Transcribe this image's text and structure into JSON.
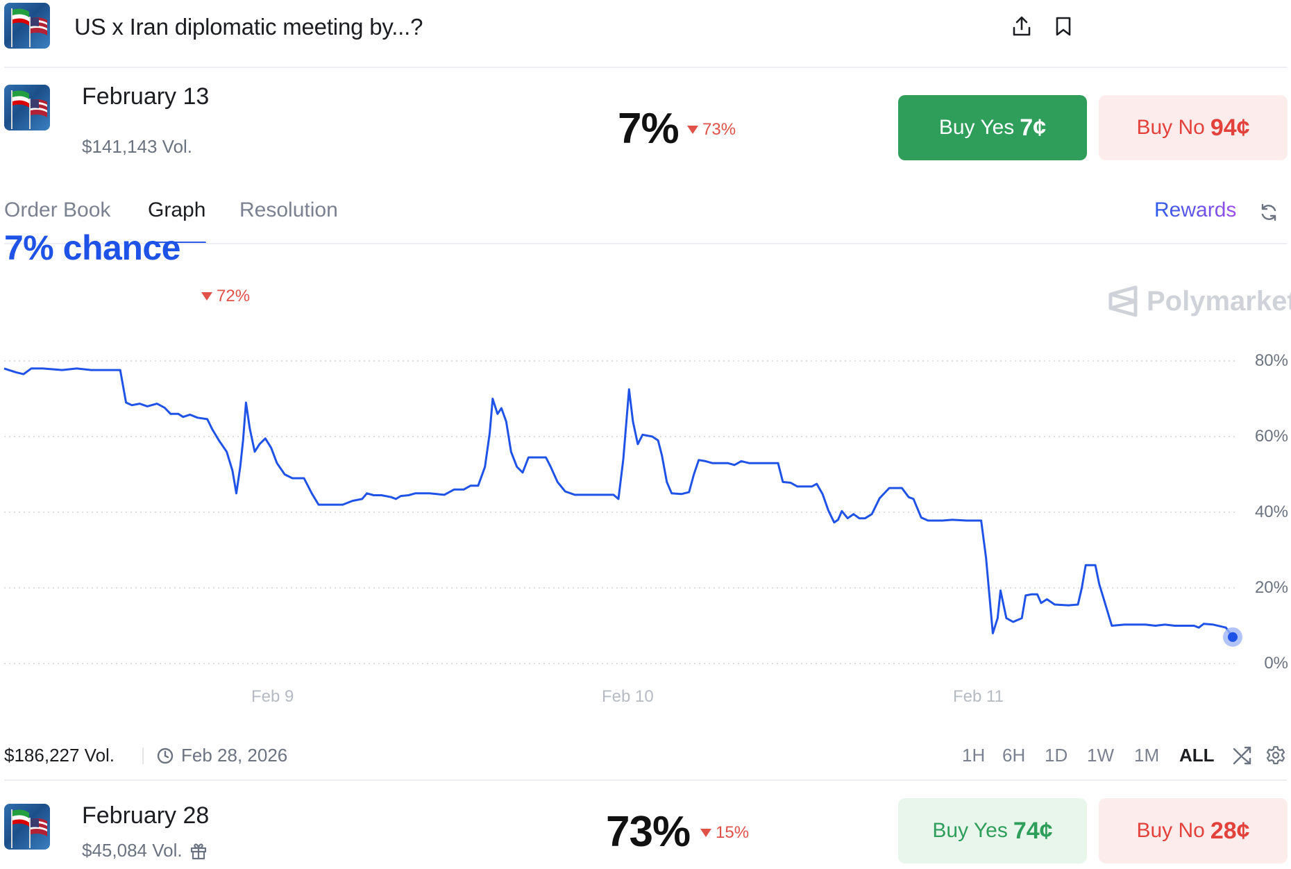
{
  "header": {
    "title": "US x Iran diplomatic meeting by...?",
    "share_icon": "share-icon",
    "bookmark_icon": "bookmark-icon"
  },
  "markets": [
    {
      "date": "February 13",
      "volume": "$141,143 Vol.",
      "percent": "7%",
      "change": "73%",
      "buy_yes_label": "Buy Yes",
      "buy_yes_price": "7¢",
      "buy_no_label": "Buy No",
      "buy_no_price": "94¢"
    },
    {
      "date": "February 28",
      "volume": "$45,084 Vol.",
      "percent": "73%",
      "change": "15%",
      "buy_yes_label": "Buy Yes",
      "buy_yes_price": "74¢",
      "buy_no_label": "Buy No",
      "buy_no_price": "28¢",
      "gift_icon": "gift-icon"
    }
  ],
  "tabs": [
    {
      "label": "Order Book",
      "active": false
    },
    {
      "label": "Graph",
      "active": true
    },
    {
      "label": "Resolution",
      "active": false
    }
  ],
  "rewards_label": "Rewards",
  "chance": {
    "label": "7% chance",
    "change": "72%"
  },
  "watermark": "Polymarket",
  "footer": {
    "volume": "$186,227 Vol.",
    "end_date": "Feb 28, 2026",
    "ranges": [
      "1H",
      "6H",
      "1D",
      "1W",
      "1M",
      "ALL"
    ],
    "active_range": "ALL"
  },
  "colors": {
    "line": "#1f52e6",
    "accent": "#2b5bea",
    "yes": "#2f9e5b",
    "no": "#e3413b",
    "down": "#e05148"
  },
  "chart_data": {
    "type": "line",
    "x_ticks": [
      "Feb 9",
      "Feb 10",
      "Feb 11"
    ],
    "y_ticks": [
      "80%",
      "60%",
      "40%",
      "20%",
      "0%"
    ],
    "ylim": [
      0,
      80
    ],
    "grid": true,
    "series": [
      {
        "points": [
          [
            0,
            78
          ],
          [
            0.012,
            77
          ],
          [
            0.02,
            76.5
          ],
          [
            0.028,
            78
          ],
          [
            0.04,
            78
          ],
          [
            0.06,
            77.6
          ],
          [
            0.075,
            78
          ],
          [
            0.09,
            77.6
          ],
          [
            0.12,
            77.6
          ],
          [
            0.126,
            69
          ],
          [
            0.132,
            68.3
          ],
          [
            0.14,
            68.7
          ],
          [
            0.148,
            68
          ],
          [
            0.158,
            68.7
          ],
          [
            0.166,
            67.6
          ],
          [
            0.172,
            66
          ],
          [
            0.18,
            66
          ],
          [
            0.185,
            65.2
          ],
          [
            0.192,
            65.8
          ],
          [
            0.2,
            65
          ],
          [
            0.21,
            64.6
          ],
          [
            0.215,
            62
          ],
          [
            0.222,
            59
          ],
          [
            0.23,
            56
          ],
          [
            0.236,
            51
          ],
          [
            0.24,
            45
          ],
          [
            0.244,
            52
          ],
          [
            0.247,
            59
          ],
          [
            0.25,
            69
          ],
          [
            0.254,
            62
          ],
          [
            0.259,
            56
          ],
          [
            0.264,
            58
          ],
          [
            0.27,
            59.5
          ],
          [
            0.276,
            57
          ],
          [
            0.282,
            53
          ],
          [
            0.29,
            50
          ],
          [
            0.298,
            49
          ],
          [
            0.305,
            49
          ],
          [
            0.31,
            49
          ],
          [
            0.318,
            45
          ],
          [
            0.325,
            42
          ],
          [
            0.335,
            42
          ],
          [
            0.35,
            42
          ],
          [
            0.36,
            43
          ],
          [
            0.37,
            43.5
          ],
          [
            0.375,
            45
          ],
          [
            0.382,
            44.5
          ],
          [
            0.39,
            44.5
          ],
          [
            0.4,
            44
          ],
          [
            0.405,
            43.5
          ],
          [
            0.41,
            44.3
          ],
          [
            0.418,
            44.5
          ],
          [
            0.425,
            45
          ],
          [
            0.44,
            45
          ],
          [
            0.455,
            44.6
          ],
          [
            0.465,
            46
          ],
          [
            0.475,
            46
          ],
          [
            0.482,
            47
          ],
          [
            0.49,
            47
          ],
          [
            0.497,
            52
          ],
          [
            0.502,
            61
          ],
          [
            0.505,
            70
          ],
          [
            0.51,
            66
          ],
          [
            0.514,
            67.5
          ],
          [
            0.519,
            64
          ],
          [
            0.524,
            56
          ],
          [
            0.53,
            52
          ],
          [
            0.536,
            50.5
          ],
          [
            0.542,
            54.5
          ],
          [
            0.555,
            54.5
          ],
          [
            0.56,
            54.5
          ],
          [
            0.565,
            52
          ],
          [
            0.572,
            48
          ],
          [
            0.58,
            45.5
          ],
          [
            0.59,
            44.6
          ],
          [
            0.6,
            44.6
          ],
          [
            0.615,
            44.6
          ],
          [
            0.63,
            44.6
          ],
          [
            0.635,
            43.5
          ],
          [
            0.64,
            54
          ],
          [
            0.646,
            72.5
          ],
          [
            0.65,
            64
          ],
          [
            0.655,
            58
          ],
          [
            0.66,
            60.5
          ],
          [
            0.67,
            60
          ],
          [
            0.676,
            59
          ],
          [
            0.68,
            55
          ],
          [
            0.685,
            48
          ],
          [
            0.69,
            45
          ],
          [
            0.7,
            44.8
          ],
          [
            0.708,
            45.3
          ],
          [
            0.713,
            50
          ],
          [
            0.718,
            53.8
          ],
          [
            0.725,
            53.5
          ],
          [
            0.732,
            53
          ],
          [
            0.74,
            53
          ],
          [
            0.748,
            53
          ],
          [
            0.755,
            52.5
          ],
          [
            0.762,
            53.5
          ],
          [
            0.77,
            53
          ],
          [
            0.78,
            53
          ],
          [
            0.79,
            53
          ],
          [
            0.8,
            53
          ],
          [
            0.805,
            48
          ],
          [
            0.813,
            47.8
          ],
          [
            0.82,
            46.8
          ],
          [
            0.83,
            46.8
          ],
          [
            0.835,
            46.8
          ],
          [
            0.84,
            47.5
          ],
          [
            0.846,
            44.8
          ],
          [
            0.852,
            40.5
          ],
          [
            0.858,
            37.3
          ],
          [
            0.862,
            38
          ],
          [
            0.866,
            40.3
          ],
          [
            0.872,
            38.4
          ],
          [
            0.878,
            39.5
          ],
          [
            0.884,
            38.4
          ],
          [
            0.89,
            38.4
          ],
          [
            0.897,
            39.5
          ],
          [
            0.905,
            43.7
          ],
          [
            0.915,
            46.4
          ],
          [
            0.928,
            46.4
          ],
          [
            0.935,
            44
          ],
          [
            0.94,
            43.5
          ],
          [
            0.948,
            38.6
          ],
          [
            0.955,
            37.8
          ],
          [
            0.97,
            37.8
          ],
          [
            0.98,
            38
          ],
          [
            0.995,
            37.8
          ],
          [
            1.005,
            37.8
          ],
          [
            1.01,
            37.8
          ],
          [
            1.015,
            28
          ],
          [
            1.022,
            8
          ],
          [
            1.027,
            12
          ],
          [
            1.03,
            19.3
          ],
          [
            1.036,
            12
          ],
          [
            1.043,
            11
          ],
          [
            1.052,
            12
          ],
          [
            1.056,
            18
          ],
          [
            1.062,
            18.3
          ],
          [
            1.068,
            18.3
          ],
          [
            1.072,
            16
          ],
          [
            1.078,
            17
          ],
          [
            1.086,
            15.6
          ],
          [
            1.1,
            15.4
          ],
          [
            1.11,
            15.6
          ],
          [
            1.114,
            20
          ],
          [
            1.118,
            26
          ],
          [
            1.128,
            26
          ],
          [
            1.132,
            21
          ],
          [
            1.138,
            16
          ],
          [
            1.145,
            10
          ],
          [
            1.158,
            10.3
          ],
          [
            1.17,
            10.3
          ],
          [
            1.18,
            10.3
          ],
          [
            1.19,
            10
          ],
          [
            1.2,
            10.3
          ],
          [
            1.21,
            10
          ],
          [
            1.22,
            10
          ],
          [
            1.23,
            10
          ],
          [
            1.235,
            9.5
          ],
          [
            1.24,
            10.5
          ],
          [
            1.25,
            10.3
          ],
          [
            1.258,
            9.8
          ],
          [
            1.263,
            9.5
          ],
          [
            1.27,
            7
          ]
        ]
      }
    ]
  }
}
